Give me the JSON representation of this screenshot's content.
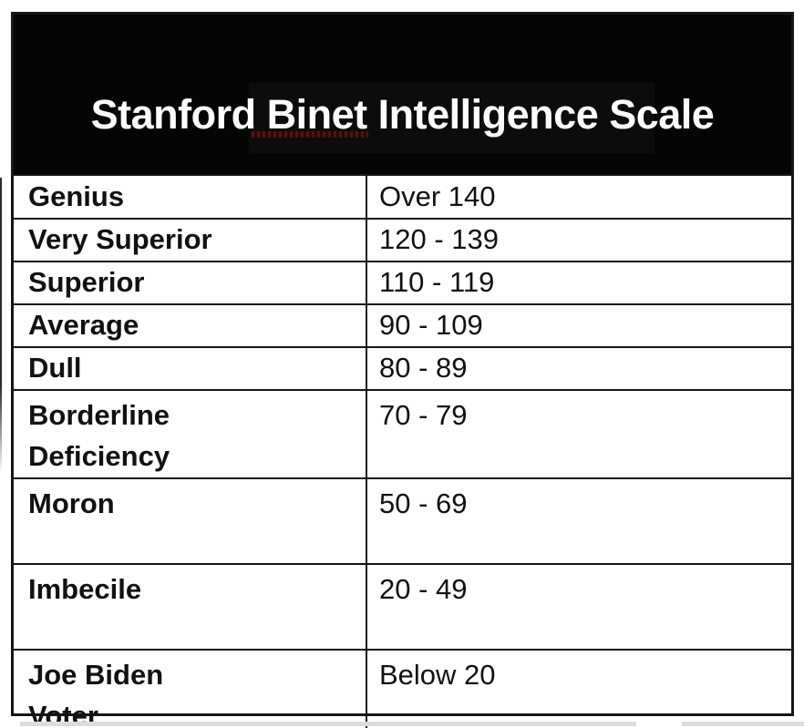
{
  "title": "Stanford Binet Intelligence Scale",
  "chart_data": {
    "type": "table",
    "title": "Stanford Binet Intelligence Scale",
    "rows": [
      [
        "Genius",
        "Over 140"
      ],
      [
        "Very Superior",
        "120 - 139"
      ],
      [
        "Superior",
        "110 - 119"
      ],
      [
        "Average",
        "90 - 109"
      ],
      [
        "Dull",
        "80 - 89"
      ],
      [
        "Borderline Deficiency",
        "70 - 79"
      ],
      [
        "Moron",
        "50 - 69"
      ],
      [
        "Imbecile",
        "20 - 49"
      ],
      [
        "Joe Biden Voter",
        "Below 20"
      ]
    ]
  },
  "table": {
    "rows": [
      {
        "label": "Genius",
        "value": "Over 140"
      },
      {
        "label": "Very Superior",
        "value": "120 - 139"
      },
      {
        "label": "Superior",
        "value": "110 - 119"
      },
      {
        "label": "Average",
        "value": "90 - 109"
      },
      {
        "label": "Dull",
        "value": "80 - 89"
      },
      {
        "label": "Borderline\nDeficiency",
        "value": "70 - 79"
      },
      {
        "label": "Moron",
        "value": "50 - 69"
      },
      {
        "label": "Imbecile",
        "value": "20 - 49"
      },
      {
        "label": "Joe Biden\nVoter",
        "value": "Below 20"
      }
    ]
  },
  "colors": {
    "header_bg": "#050505",
    "title_text": "#fdfdfd",
    "border": "#161616",
    "body_text": "#111111",
    "watermark_red": "#7a1612",
    "bottom_band_gray": "#dcdcdc"
  }
}
